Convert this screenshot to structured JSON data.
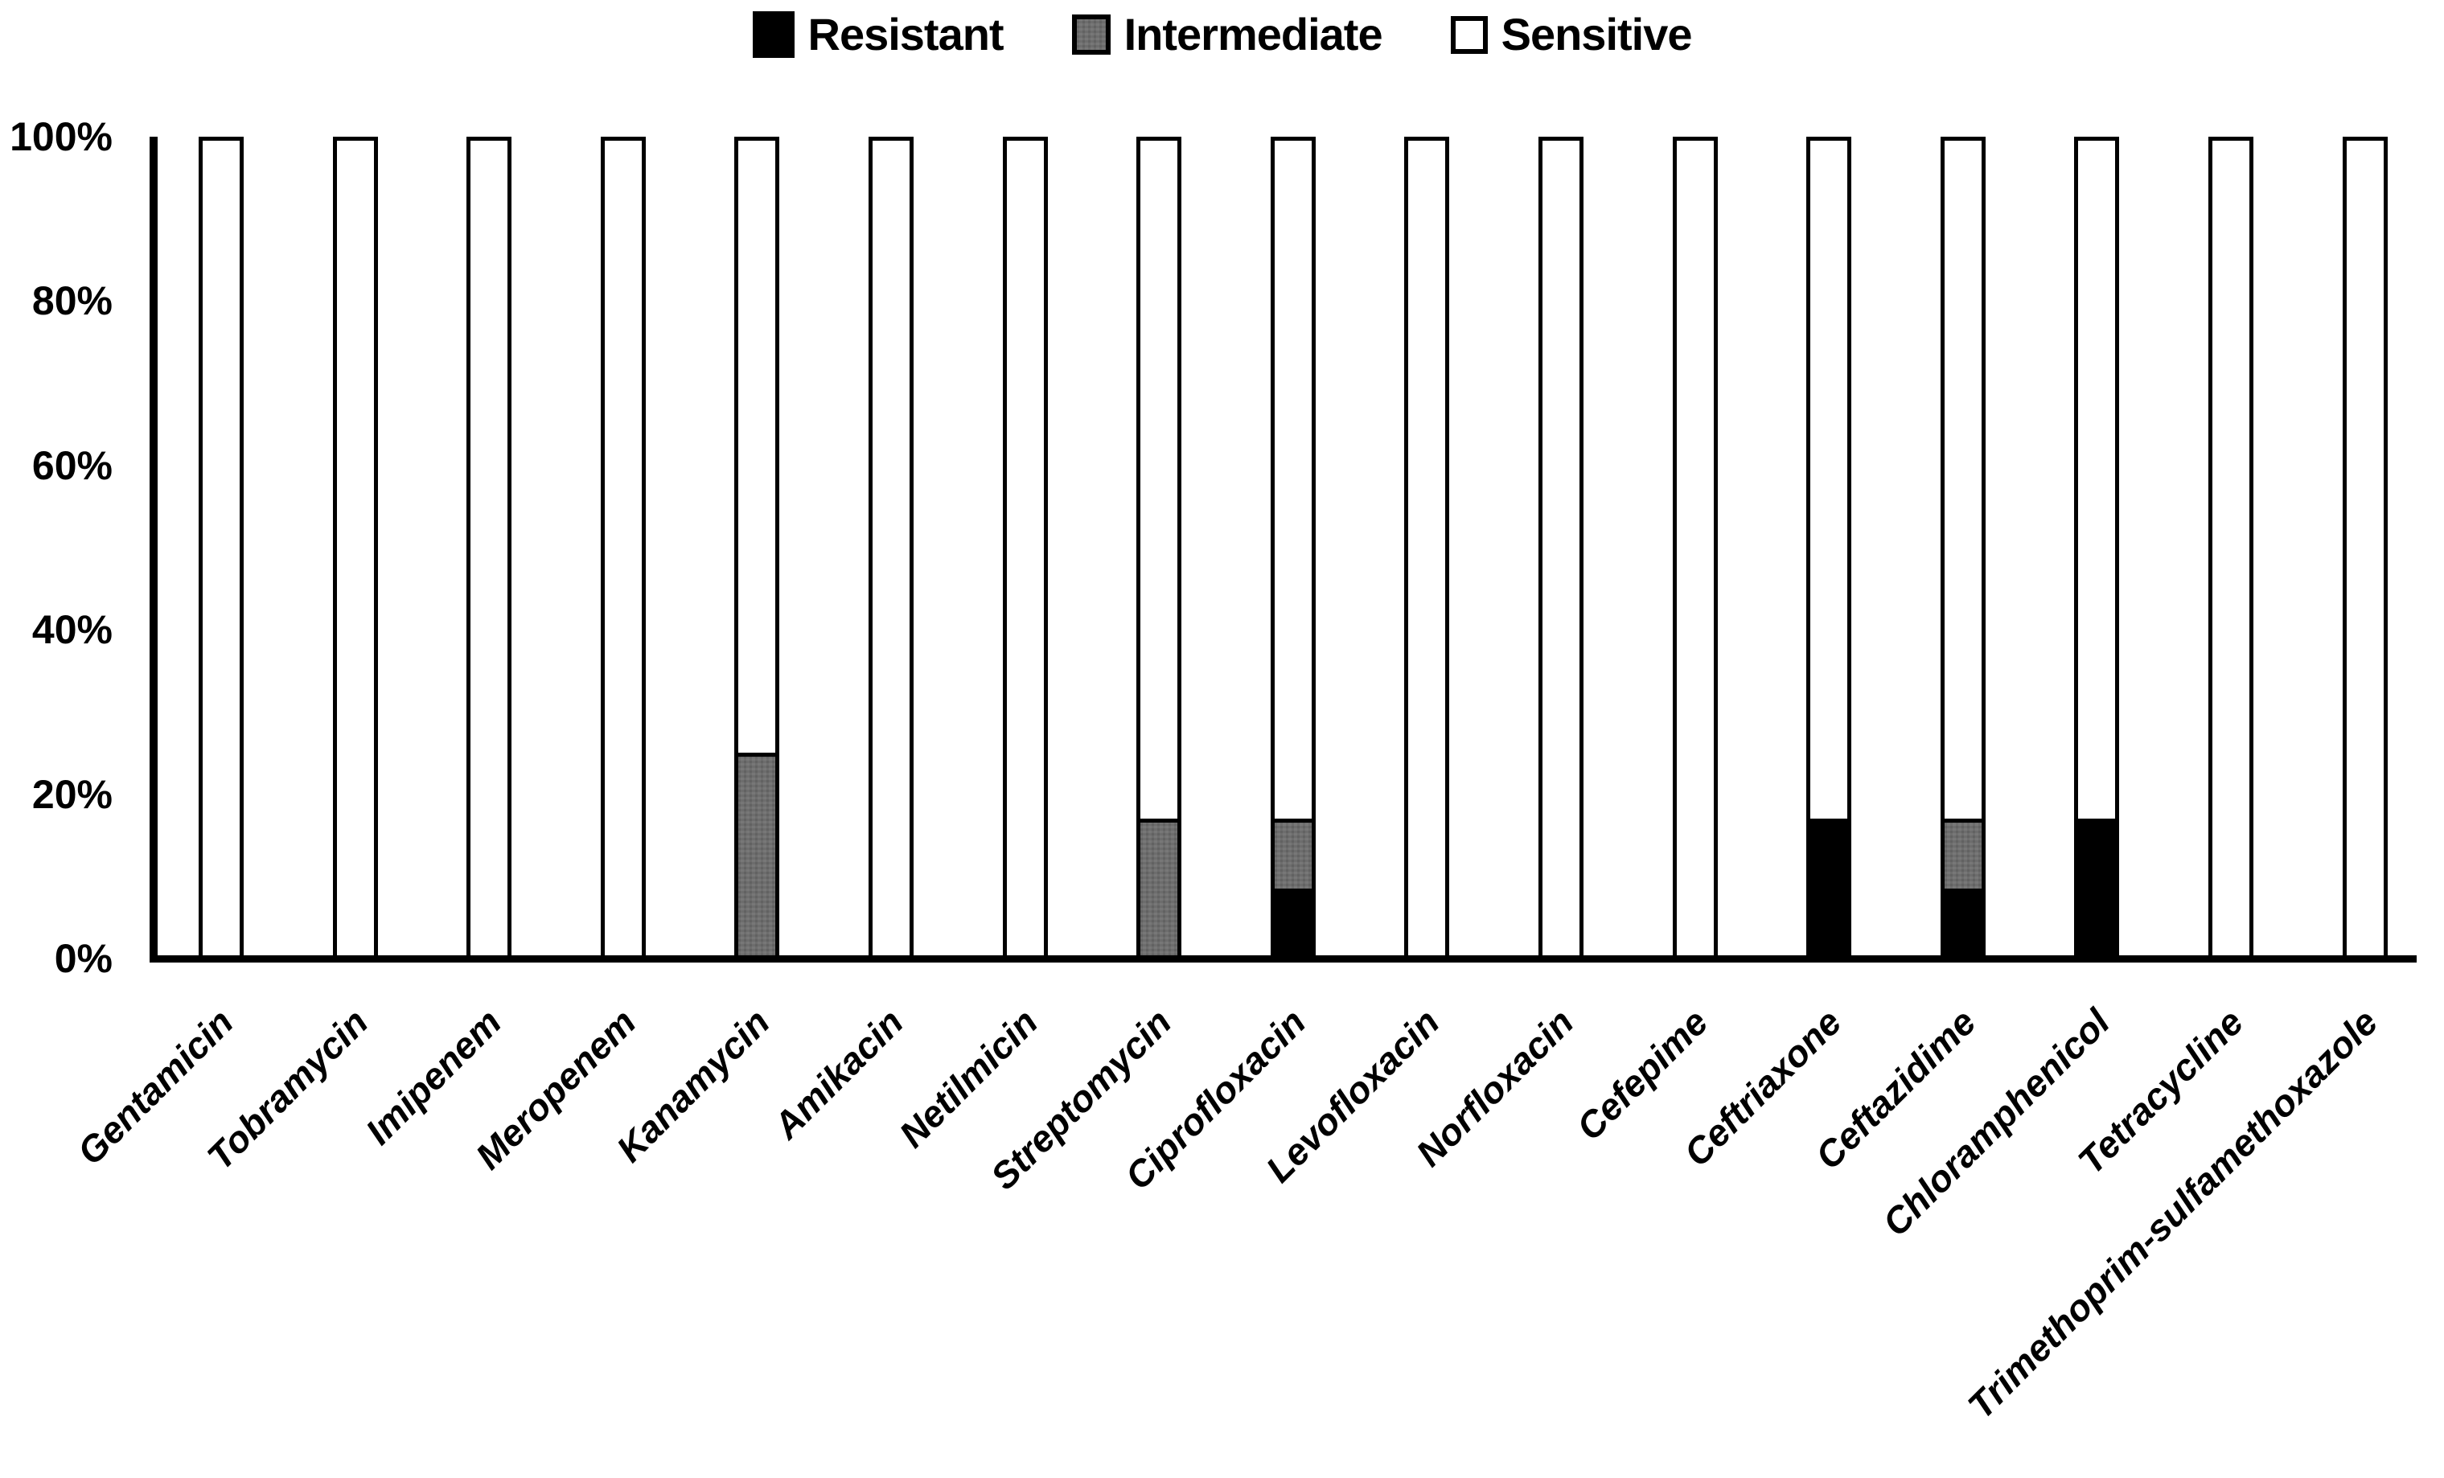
{
  "chart_data": {
    "type": "bar",
    "stacked": true,
    "units": "percent",
    "title": "",
    "grid": false,
    "categories": [
      "Gentamicin",
      "Tobramycin",
      "Imipenem",
      "Meropenem",
      "Kanamycin",
      "Amikacin",
      "Netilmicin",
      "Streptomycin",
      "Ciprofloxacin",
      "Levofloxacin",
      "Norfloxacin",
      "Cefepime",
      "Ceftriaxone",
      "Ceftazidime",
      "Chloramphenicol",
      "Tetracycline",
      "Trimethoprim-sulfamethoxazole"
    ],
    "series": [
      {
        "name": "Resistant",
        "color": "#000000",
        "values": [
          0,
          0,
          0,
          0,
          0,
          0,
          0,
          0,
          8.5,
          0,
          0,
          0,
          17,
          8.5,
          17,
          0,
          0
        ]
      },
      {
        "name": "Intermediate",
        "color": "#6d6d6d",
        "values": [
          0,
          0,
          0,
          0,
          25,
          0,
          0,
          17,
          8.5,
          0,
          0,
          0,
          0,
          8.5,
          0,
          0,
          0
        ]
      },
      {
        "name": "Sensitive",
        "color": "#ffffff",
        "values": [
          100,
          100,
          100,
          100,
          75,
          100,
          100,
          83,
          83,
          100,
          100,
          100,
          83,
          83,
          83,
          100,
          100
        ]
      }
    ],
    "y_axis": {
      "min": 0,
      "max": 100,
      "tick_labels": [
        "0%",
        "20%",
        "40%",
        "60%",
        "80%",
        "100%"
      ]
    },
    "legend": {
      "position": "top",
      "labels": [
        "Resistant",
        "Intermediate",
        "Sensitive"
      ]
    }
  }
}
